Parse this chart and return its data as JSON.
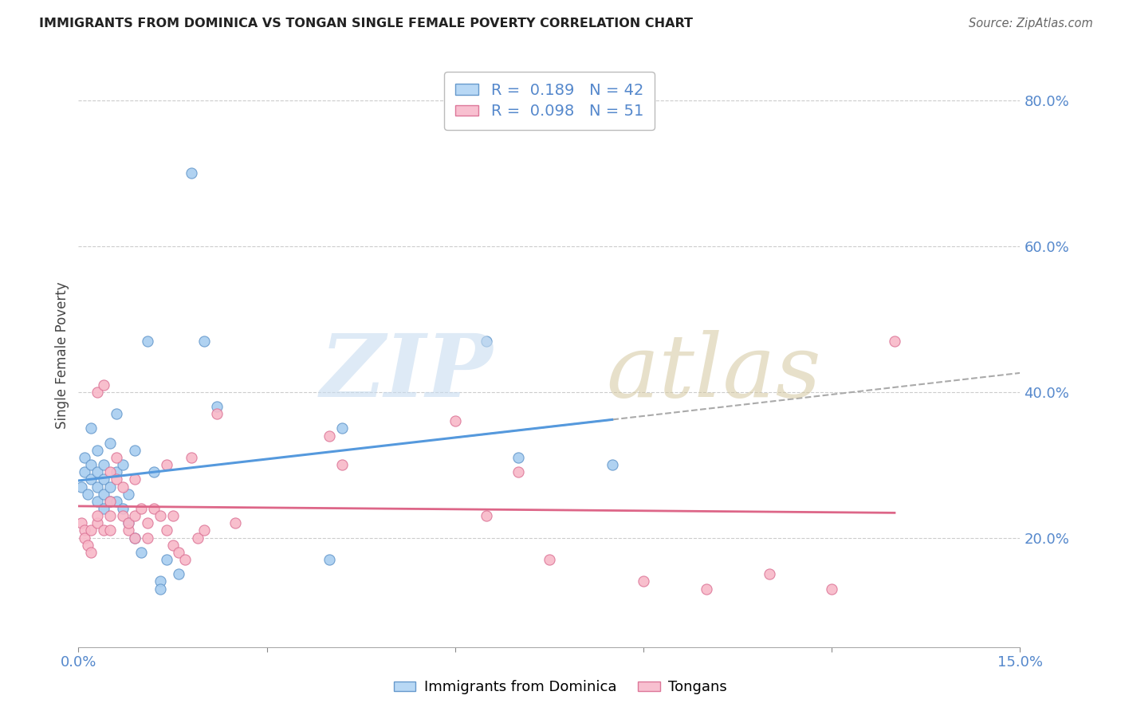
{
  "title": "IMMIGRANTS FROM DOMINICA VS TONGAN SINGLE FEMALE POVERTY CORRELATION CHART",
  "source": "Source: ZipAtlas.com",
  "ylabel": "Single Female Poverty",
  "xlim": [
    0.0,
    0.15
  ],
  "ylim": [
    0.05,
    0.85
  ],
  "xticks": [
    0.0,
    0.03,
    0.06,
    0.09,
    0.12,
    0.15
  ],
  "xticklabels": [
    "0.0%",
    "",
    "",
    "",
    "",
    "15.0%"
  ],
  "yticks_right": [
    0.2,
    0.4,
    0.6,
    0.8
  ],
  "ytick_right_labels": [
    "20.0%",
    "40.0%",
    "60.0%",
    "80.0%"
  ],
  "dominica_color": "#a8cef0",
  "tongan_color": "#f8b8c8",
  "dominica_edge_color": "#6699cc",
  "tongan_edge_color": "#dd7799",
  "dominica_line_color": "#5599dd",
  "tongan_line_color": "#dd6688",
  "dashed_line_color": "#aaaaaa",
  "R_dominica": 0.189,
  "N_dominica": 42,
  "R_tongan": 0.098,
  "N_tongan": 51,
  "legend_box_color_dominica": "#b8d8f5",
  "legend_box_color_tongan": "#f8c0d0",
  "background_color": "#ffffff",
  "grid_color": "#cccccc",
  "dominica_x": [
    0.0005,
    0.001,
    0.001,
    0.0015,
    0.002,
    0.002,
    0.002,
    0.003,
    0.003,
    0.003,
    0.003,
    0.004,
    0.004,
    0.004,
    0.004,
    0.005,
    0.005,
    0.005,
    0.006,
    0.006,
    0.006,
    0.007,
    0.007,
    0.008,
    0.008,
    0.009,
    0.009,
    0.01,
    0.011,
    0.012,
    0.013,
    0.013,
    0.014,
    0.016,
    0.018,
    0.02,
    0.022,
    0.04,
    0.042,
    0.065,
    0.07,
    0.085
  ],
  "dominica_y": [
    0.27,
    0.29,
    0.31,
    0.26,
    0.28,
    0.3,
    0.35,
    0.25,
    0.27,
    0.29,
    0.32,
    0.24,
    0.26,
    0.28,
    0.3,
    0.25,
    0.27,
    0.33,
    0.25,
    0.29,
    0.37,
    0.24,
    0.3,
    0.22,
    0.26,
    0.2,
    0.32,
    0.18,
    0.47,
    0.29,
    0.14,
    0.13,
    0.17,
    0.15,
    0.7,
    0.47,
    0.38,
    0.17,
    0.35,
    0.47,
    0.31,
    0.3
  ],
  "tongan_x": [
    0.0005,
    0.001,
    0.001,
    0.0015,
    0.002,
    0.002,
    0.003,
    0.003,
    0.003,
    0.004,
    0.004,
    0.005,
    0.005,
    0.005,
    0.005,
    0.006,
    0.006,
    0.007,
    0.007,
    0.008,
    0.008,
    0.009,
    0.009,
    0.009,
    0.01,
    0.011,
    0.011,
    0.012,
    0.013,
    0.014,
    0.014,
    0.015,
    0.015,
    0.016,
    0.017,
    0.018,
    0.019,
    0.02,
    0.022,
    0.025,
    0.04,
    0.042,
    0.06,
    0.065,
    0.07,
    0.075,
    0.09,
    0.1,
    0.11,
    0.12,
    0.13
  ],
  "tongan_y": [
    0.22,
    0.21,
    0.2,
    0.19,
    0.21,
    0.18,
    0.22,
    0.23,
    0.4,
    0.21,
    0.41,
    0.21,
    0.23,
    0.25,
    0.29,
    0.28,
    0.31,
    0.23,
    0.27,
    0.21,
    0.22,
    0.2,
    0.23,
    0.28,
    0.24,
    0.2,
    0.22,
    0.24,
    0.23,
    0.21,
    0.3,
    0.19,
    0.23,
    0.18,
    0.17,
    0.31,
    0.2,
    0.21,
    0.37,
    0.22,
    0.34,
    0.3,
    0.36,
    0.23,
    0.29,
    0.17,
    0.14,
    0.13,
    0.15,
    0.13,
    0.47
  ]
}
